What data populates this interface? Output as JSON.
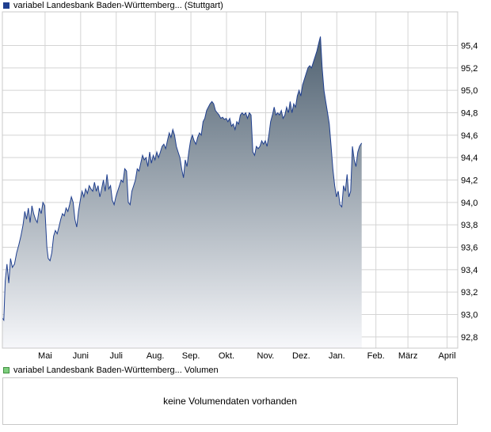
{
  "price_legend": {
    "label": "variabel Landesbank Baden-Württemberg... (Stuttgart)",
    "color": "#1f3f8f"
  },
  "volume_legend": {
    "label": "variabel Landesbank Baden-Württemberg... Volumen",
    "color": "#7fcf7f"
  },
  "volume_panel": {
    "message": "keine Volumendaten vorhanden"
  },
  "colors": {
    "line": "#1f3f8f",
    "fill_top": "#4e6070",
    "fill_bottom": "#f6f7fa",
    "grid": "#d4d4d4",
    "frame": "#c8c8c8"
  },
  "chart_data": {
    "type": "area",
    "title": "",
    "xlabel": "",
    "ylabel": "",
    "ylim": [
      92.7,
      95.7
    ],
    "y_ticks": [
      92.8,
      93.0,
      93.2,
      93.4,
      93.6,
      93.8,
      94.0,
      94.2,
      94.4,
      94.6,
      94.8,
      95.0,
      95.2,
      95.4
    ],
    "y_tick_labels": [
      "92,8",
      "93,0",
      "93,2",
      "93,4",
      "93,6",
      "93,8",
      "94,0",
      "94,2",
      "94,4",
      "94,6",
      "94,8",
      "95,0",
      "95,2",
      "95,4"
    ],
    "x_ticks": [
      {
        "label": "Mai",
        "x": 12
      },
      {
        "label": "Juni",
        "x": 22
      },
      {
        "label": "Juli",
        "x": 32
      },
      {
        "label": "Aug.",
        "x": 43
      },
      {
        "label": "Sep.",
        "x": 53
      },
      {
        "label": "Okt.",
        "x": 63
      },
      {
        "label": "Nov.",
        "x": 74
      },
      {
        "label": "Dez.",
        "x": 84
      },
      {
        "label": "Jan.",
        "x": 94
      },
      {
        "label": "Feb.",
        "x": 105
      },
      {
        "label": "März",
        "x": 114
      },
      {
        "label": "April",
        "x": 125
      }
    ],
    "xlim": [
      0,
      128
    ],
    "grid": true,
    "series": [
      {
        "values": [
          [
            0,
            92.97
          ],
          [
            0.4,
            92.95
          ],
          [
            0.8,
            93.3
          ],
          [
            1.3,
            93.45
          ],
          [
            1.8,
            93.28
          ],
          [
            2.3,
            93.5
          ],
          [
            2.8,
            93.42
          ],
          [
            3.4,
            93.45
          ],
          [
            4,
            93.55
          ],
          [
            4.6,
            93.62
          ],
          [
            5.2,
            93.7
          ],
          [
            5.8,
            93.8
          ],
          [
            6.3,
            93.92
          ],
          [
            6.8,
            93.85
          ],
          [
            7.3,
            93.95
          ],
          [
            7.8,
            93.82
          ],
          [
            8.3,
            93.97
          ],
          [
            8.8,
            93.9
          ],
          [
            9.3,
            93.85
          ],
          [
            9.8,
            93.82
          ],
          [
            10.4,
            93.95
          ],
          [
            10.9,
            93.9
          ],
          [
            11.4,
            94.0
          ],
          [
            11.9,
            93.97
          ],
          [
            12.5,
            93.6
          ],
          [
            12.9,
            93.5
          ],
          [
            13.4,
            93.48
          ],
          [
            13.9,
            93.55
          ],
          [
            14.4,
            93.7
          ],
          [
            14.9,
            93.75
          ],
          [
            15.4,
            93.72
          ],
          [
            15.9,
            93.78
          ],
          [
            16.4,
            93.85
          ],
          [
            16.9,
            93.9
          ],
          [
            17.4,
            93.88
          ],
          [
            17.9,
            93.95
          ],
          [
            18.4,
            93.92
          ],
          [
            18.9,
            93.98
          ],
          [
            19.4,
            94.05
          ],
          [
            19.9,
            94.0
          ],
          [
            20.4,
            93.85
          ],
          [
            20.9,
            93.78
          ],
          [
            21.4,
            93.92
          ],
          [
            21.9,
            94.02
          ],
          [
            22.4,
            94.1
          ],
          [
            22.9,
            94.05
          ],
          [
            23.4,
            94.12
          ],
          [
            23.9,
            94.08
          ],
          [
            24.4,
            94.15
          ],
          [
            24.9,
            94.12
          ],
          [
            25.4,
            94.1
          ],
          [
            25.9,
            94.18
          ],
          [
            26.4,
            94.1
          ],
          [
            26.9,
            94.15
          ],
          [
            27.4,
            94.05
          ],
          [
            27.9,
            94.12
          ],
          [
            28.4,
            94.2
          ],
          [
            28.9,
            94.1
          ],
          [
            29.4,
            94.25
          ],
          [
            29.9,
            94.12
          ],
          [
            30.4,
            94.15
          ],
          [
            30.9,
            94.02
          ],
          [
            31.4,
            93.98
          ],
          [
            31.9,
            94.05
          ],
          [
            32.4,
            94.1
          ],
          [
            32.9,
            94.15
          ],
          [
            33.4,
            94.2
          ],
          [
            33.9,
            94.18
          ],
          [
            34.4,
            94.3
          ],
          [
            34.9,
            94.28
          ],
          [
            35.4,
            94.0
          ],
          [
            35.9,
            93.98
          ],
          [
            36.4,
            94.1
          ],
          [
            36.9,
            94.15
          ],
          [
            37.4,
            94.2
          ],
          [
            37.9,
            94.3
          ],
          [
            38.4,
            94.28
          ],
          [
            38.9,
            94.35
          ],
          [
            39.4,
            94.42
          ],
          [
            39.9,
            94.38
          ],
          [
            40.4,
            94.4
          ],
          [
            40.9,
            94.32
          ],
          [
            41.4,
            94.45
          ],
          [
            41.9,
            94.35
          ],
          [
            42.4,
            94.42
          ],
          [
            42.9,
            94.38
          ],
          [
            43.4,
            94.45
          ],
          [
            43.9,
            94.4
          ],
          [
            44.4,
            94.45
          ],
          [
            44.9,
            94.5
          ],
          [
            45.4,
            94.52
          ],
          [
            45.9,
            94.48
          ],
          [
            46.4,
            94.55
          ],
          [
            46.9,
            94.62
          ],
          [
            47.4,
            94.58
          ],
          [
            47.9,
            94.65
          ],
          [
            48.4,
            94.6
          ],
          [
            48.9,
            94.5
          ],
          [
            49.4,
            94.45
          ],
          [
            49.9,
            94.4
          ],
          [
            50.4,
            94.3
          ],
          [
            50.9,
            94.22
          ],
          [
            51.4,
            94.38
          ],
          [
            51.9,
            94.32
          ],
          [
            52.4,
            94.45
          ],
          [
            52.9,
            94.55
          ],
          [
            53.4,
            94.6
          ],
          [
            53.9,
            94.55
          ],
          [
            54.4,
            94.52
          ],
          [
            54.9,
            94.58
          ],
          [
            55.4,
            94.62
          ],
          [
            55.9,
            94.6
          ],
          [
            56.4,
            94.72
          ],
          [
            56.9,
            94.75
          ],
          [
            57.4,
            94.82
          ],
          [
            57.9,
            94.85
          ],
          [
            58.4,
            94.88
          ],
          [
            58.9,
            94.9
          ],
          [
            59.4,
            94.88
          ],
          [
            59.9,
            94.82
          ],
          [
            60.4,
            94.8
          ],
          [
            60.9,
            94.78
          ],
          [
            61.4,
            94.75
          ],
          [
            61.9,
            94.76
          ],
          [
            62.4,
            94.74
          ],
          [
            62.9,
            94.75
          ],
          [
            63.4,
            94.72
          ],
          [
            63.9,
            94.75
          ],
          [
            64.4,
            94.68
          ],
          [
            64.9,
            94.7
          ],
          [
            65.4,
            94.65
          ],
          [
            65.9,
            94.72
          ],
          [
            66.4,
            94.7
          ],
          [
            66.9,
            94.78
          ],
          [
            67.4,
            94.8
          ],
          [
            67.9,
            94.78
          ],
          [
            68.4,
            94.8
          ],
          [
            68.9,
            94.75
          ],
          [
            69.4,
            94.8
          ],
          [
            69.9,
            94.78
          ],
          [
            70.4,
            94.45
          ],
          [
            70.9,
            94.42
          ],
          [
            71.4,
            94.5
          ],
          [
            71.9,
            94.48
          ],
          [
            72.4,
            94.5
          ],
          [
            72.9,
            94.55
          ],
          [
            73.4,
            94.52
          ],
          [
            73.9,
            94.55
          ],
          [
            74.4,
            94.5
          ],
          [
            74.9,
            94.6
          ],
          [
            75.4,
            94.72
          ],
          [
            75.9,
            94.78
          ],
          [
            76.4,
            94.85
          ],
          [
            76.9,
            94.78
          ],
          [
            77.4,
            94.8
          ],
          [
            77.9,
            94.78
          ],
          [
            78.4,
            94.82
          ],
          [
            78.9,
            94.75
          ],
          [
            79.4,
            94.78
          ],
          [
            79.9,
            94.85
          ],
          [
            80.4,
            94.8
          ],
          [
            80.9,
            94.9
          ],
          [
            81.4,
            94.8
          ],
          [
            81.9,
            94.88
          ],
          [
            82.4,
            94.85
          ],
          [
            82.9,
            94.95
          ],
          [
            83.4,
            95.0
          ],
          [
            83.9,
            94.95
          ],
          [
            84.4,
            95.05
          ],
          [
            84.9,
            95.1
          ],
          [
            85.4,
            95.15
          ],
          [
            85.9,
            95.2
          ],
          [
            86.4,
            95.22
          ],
          [
            86.9,
            95.2
          ],
          [
            87.4,
            95.25
          ],
          [
            87.9,
            95.3
          ],
          [
            88.4,
            95.35
          ],
          [
            88.9,
            95.42
          ],
          [
            89.4,
            95.48
          ],
          [
            89.9,
            95.2
          ],
          [
            90.4,
            95.0
          ],
          [
            90.9,
            94.9
          ],
          [
            91.4,
            94.8
          ],
          [
            91.9,
            94.7
          ],
          [
            92.4,
            94.5
          ],
          [
            92.9,
            94.3
          ],
          [
            93.4,
            94.15
          ],
          [
            93.9,
            94.05
          ],
          [
            94.4,
            94.1
          ],
          [
            94.9,
            93.98
          ],
          [
            95.4,
            93.96
          ],
          [
            95.9,
            94.15
          ],
          [
            96.4,
            94.1
          ],
          [
            96.9,
            94.25
          ],
          [
            97.4,
            94.05
          ],
          [
            97.9,
            94.1
          ],
          [
            98.4,
            94.5
          ],
          [
            98.9,
            94.38
          ],
          [
            99.4,
            94.32
          ],
          [
            99.9,
            94.45
          ],
          [
            100.4,
            94.5
          ],
          [
            101,
            94.53
          ]
        ]
      }
    ]
  }
}
